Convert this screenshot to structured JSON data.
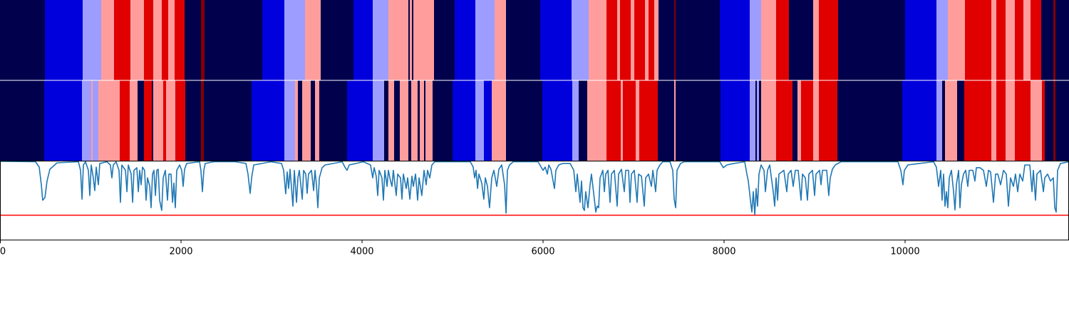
{
  "chart_data": {
    "type": "segmentation",
    "xlim": [
      0,
      11811
    ],
    "xticks": [
      0,
      2000,
      4000,
      6000,
      8000,
      10000
    ],
    "level_colors": {
      "-3": "#00004c",
      "-2": "#0000dd",
      "-1": "#9d9dff",
      "1": "#ff9d9d",
      "2": "#e10000",
      "3": "#830000"
    },
    "rows": [
      {
        "starts": [
          0,
          496,
          913,
          1118,
          1260,
          1441,
          1591,
          1693,
          1787,
          1858,
          1929,
          2039,
          2220,
          2260,
          2898,
          3142,
          3370,
          3543,
          3906,
          4118,
          4291,
          4512,
          4528,
          4551,
          4567,
          4795,
          5024,
          5252,
          5465,
          5591,
          5969,
          6315,
          6504,
          6701,
          6819,
          6850,
          6969,
          7008,
          7126,
          7165,
          7228,
          7276,
          7449,
          7465,
          7953,
          8283,
          8409,
          8575,
          8717,
          8984,
          9047,
          9260,
          10000,
          10346,
          10472,
          10661,
          10953,
          11008,
          11110,
          11213,
          11307,
          11386,
          11504,
          11638,
          11661
        ],
        "levels": [
          -3,
          -2,
          -1,
          1,
          2,
          1,
          2,
          1,
          2,
          1,
          2,
          -3,
          3,
          -3,
          -2,
          -1,
          1,
          -3,
          -2,
          -1,
          1,
          -3,
          1,
          -3,
          1,
          -3,
          -2,
          -1,
          1,
          -3,
          -2,
          -1,
          1,
          2,
          1,
          2,
          1,
          2,
          1,
          2,
          1,
          -3,
          3,
          -3,
          -2,
          -1,
          1,
          2,
          -3,
          1,
          2,
          -3,
          -2,
          -1,
          1,
          2,
          1,
          2,
          1,
          2,
          1,
          2,
          -3,
          3,
          -3
        ]
      },
      {
        "starts": [
          0,
          488,
          906,
          1008,
          1024,
          1087,
          1323,
          1433,
          1520,
          1591,
          1677,
          1693,
          1803,
          1835,
          1937,
          2047,
          2220,
          2252,
          2780,
          3142,
          3260,
          3291,
          3339,
          3433,
          3480,
          3528,
          3835,
          4118,
          4244,
          4291,
          4354,
          4417,
          4512,
          4543,
          4614,
          4638,
          4685,
          4701,
          4780,
          5000,
          5252,
          5346,
          5433,
          5591,
          5992,
          6323,
          6394,
          6488,
          6701,
          6858,
          6882,
          7024,
          7063,
          7268,
          7449,
          7465,
          7961,
          8283,
          8346,
          8362,
          8386,
          8409,
          8575,
          8756,
          8811,
          8850,
          8984,
          9047,
          9252,
          9969,
          10346,
          10409,
          10441,
          10575,
          10654,
          10953,
          11008,
          11110,
          11213,
          11386,
          11512,
          11543,
          11638,
          11661
        ],
        "levels": [
          -3,
          -2,
          -1,
          1,
          -1,
          1,
          2,
          1,
          -3,
          2,
          -3,
          1,
          2,
          1,
          2,
          -3,
          3,
          -3,
          -2,
          -1,
          1,
          -3,
          1,
          -3,
          1,
          -3,
          -2,
          -1,
          -3,
          1,
          -3,
          1,
          -3,
          1,
          -3,
          1,
          -3,
          1,
          -3,
          -2,
          -1,
          -2,
          1,
          -3,
          -2,
          -1,
          -3,
          1,
          2,
          1,
          2,
          1,
          2,
          -3,
          1,
          -3,
          -2,
          -1,
          -3,
          -1,
          -3,
          1,
          2,
          -3,
          1,
          2,
          1,
          2,
          -3,
          -2,
          -1,
          -3,
          1,
          -3,
          2,
          1,
          2,
          1,
          2,
          1,
          2,
          -3,
          3,
          -3
        ]
      }
    ],
    "line": {
      "color": "#1f77b4",
      "ylim": [
        -1.48,
        0.01
      ],
      "threshold": -1.01,
      "threshold_color": "#ff0000",
      "x": [
        0,
        394,
        433,
        457,
        472,
        496,
        520,
        551,
        630,
        866,
        890,
        906,
        921,
        945,
        976,
        992,
        1008,
        1031,
        1047,
        1063,
        1087,
        1102,
        1181,
        1220,
        1236,
        1252,
        1283,
        1315,
        1331,
        1346,
        1386,
        1402,
        1417,
        1449,
        1465,
        1480,
        1512,
        1528,
        1543,
        1559,
        1575,
        1598,
        1614,
        1630,
        1654,
        1669,
        1685,
        1701,
        1717,
        1732,
        1748,
        1764,
        1787,
        1803,
        1827,
        1850,
        1866,
        1890,
        1906,
        1921,
        1937,
        1953,
        1984,
        2008,
        2024,
        2039,
        2063,
        2205,
        2220,
        2236,
        2252,
        2268,
        2362,
        2598,
        2717,
        2740,
        2764,
        2780,
        2803,
        2992,
        3110,
        3134,
        3157,
        3173,
        3189,
        3205,
        3220,
        3236,
        3252,
        3276,
        3291,
        3307,
        3339,
        3354,
        3378,
        3394,
        3409,
        3441,
        3465,
        3480,
        3496,
        3512,
        3528,
        3559,
        3591,
        3780,
        3811,
        3835,
        3858,
        4016,
        4094,
        4118,
        4134,
        4157,
        4173,
        4189,
        4220,
        4236,
        4252,
        4276,
        4291,
        4315,
        4331,
        4346,
        4378,
        4394,
        4425,
        4441,
        4457,
        4488,
        4504,
        4528,
        4551,
        4567,
        4591,
        4614,
        4630,
        4661,
        4685,
        4709,
        4724,
        4748,
        4772,
        4803,
        5197,
        5228,
        5244,
        5260,
        5276,
        5291,
        5323,
        5346,
        5362,
        5386,
        5409,
        5433,
        5457,
        5488,
        5512,
        5543,
        5575,
        5591,
        5606,
        5630,
        5669,
        5945,
        6000,
        6024,
        6047,
        6063,
        6087,
        6126,
        6142,
        6173,
        6220,
        6299,
        6339,
        6362,
        6378,
        6394,
        6409,
        6425,
        6441,
        6457,
        6472,
        6496,
        6520,
        6535,
        6567,
        6583,
        6598,
        6614,
        6630,
        6661,
        6677,
        6693,
        6717,
        6740,
        6756,
        6787,
        6819,
        6835,
        6866,
        6898,
        6913,
        6945,
        6961,
        6976,
        7008,
        7039,
        7055,
        7087,
        7118,
        7134,
        7165,
        7197,
        7213,
        7244,
        7260,
        7291,
        7323,
        7402,
        7433,
        7449,
        7465,
        7480,
        7520,
        7559,
        7953,
        7992,
        8031,
        8110,
        8228,
        8252,
        8268,
        8291,
        8307,
        8323,
        8339,
        8354,
        8370,
        8386,
        8409,
        8441,
        8457,
        8480,
        8504,
        8543,
        8559,
        8575,
        8591,
        8606,
        8661,
        8693,
        8709,
        8740,
        8764,
        8787,
        8819,
        8850,
        8866,
        8898,
        8921,
        8937,
        8976,
        9000,
        9016,
        9055,
        9071,
        9087,
        9134,
        9157,
        9173,
        9197,
        9228,
        9291,
        9921,
        9953,
        9976,
        9992,
        10031,
        10157,
        10315,
        10346,
        10370,
        10394,
        10409,
        10425,
        10441,
        10457,
        10472,
        10488,
        10512,
        10535,
        10551,
        10567,
        10591,
        10606,
        10622,
        10646,
        10669,
        10693,
        10709,
        10748,
        10772,
        10787,
        10827,
        10866,
        10898,
        10921,
        10945,
        10976,
        11000,
        11024,
        11055,
        11087,
        11118,
        11142,
        11165,
        11197,
        11220,
        11244,
        11268,
        11299,
        11323,
        11378,
        11402,
        11417,
        11441,
        11457,
        11496,
        11528,
        11543,
        11575,
        11606,
        11638,
        11654,
        11669,
        11685,
        11717,
        11811
      ],
      "y": [
        0,
        -0.01,
        -0.11,
        -0.44,
        -0.73,
        -0.68,
        -0.37,
        -0.15,
        -0.03,
        -0.01,
        -0.17,
        -0.71,
        -0.07,
        -0.01,
        -0.17,
        -0.64,
        -0.07,
        -0.31,
        -0.55,
        -0.11,
        -0.44,
        -0.04,
        -0.01,
        -0.07,
        -0.31,
        -0.07,
        -0.01,
        -0.17,
        -0.77,
        -0.07,
        -0.17,
        -0.57,
        -0.07,
        -0.24,
        -0.77,
        -0.17,
        -0.12,
        -0.57,
        -0.17,
        -0.44,
        -0.11,
        -0.17,
        -0.73,
        -0.31,
        -0.47,
        -0.87,
        -0.24,
        -0.17,
        -0.64,
        -0.17,
        -0.15,
        -0.73,
        -0.92,
        -0.31,
        -0.17,
        -0.73,
        -0.24,
        -0.24,
        -0.77,
        -0.41,
        -0.87,
        -0.17,
        -0.07,
        -0.17,
        -0.47,
        -0.15,
        -0.04,
        -0.01,
        -0.17,
        -0.57,
        -0.17,
        -0.04,
        -0.01,
        -0.01,
        -0.04,
        -0.24,
        -0.6,
        -0.31,
        -0.07,
        -0.01,
        -0.04,
        -0.17,
        -0.61,
        -0.2,
        -0.51,
        -0.15,
        -0.47,
        -0.84,
        -0.17,
        -0.77,
        -0.31,
        -0.17,
        -0.71,
        -0.17,
        -0.24,
        -0.6,
        -0.24,
        -0.17,
        -0.55,
        -0.17,
        -0.44,
        -0.87,
        -0.31,
        -0.12,
        -0.07,
        -0.01,
        -0.11,
        -0.17,
        -0.07,
        -0.01,
        -0.07,
        -0.31,
        -0.12,
        -0.28,
        -0.64,
        -0.17,
        -0.31,
        -0.73,
        -0.17,
        -0.47,
        -0.17,
        -0.37,
        -0.47,
        -0.17,
        -0.64,
        -0.24,
        -0.31,
        -0.71,
        -0.24,
        -0.51,
        -0.31,
        -0.71,
        -0.28,
        -0.47,
        -0.24,
        -0.73,
        -0.31,
        -0.64,
        -0.17,
        -0.44,
        -0.17,
        -0.31,
        -0.07,
        -0.01,
        -0.01,
        -0.11,
        -0.31,
        -0.17,
        -0.51,
        -0.24,
        -0.41,
        -0.71,
        -0.31,
        -0.47,
        -0.87,
        -0.31,
        -0.17,
        -0.47,
        -0.15,
        -0.07,
        -0.44,
        -0.97,
        -0.17,
        -0.07,
        -0.01,
        -0.01,
        -0.17,
        -0.11,
        -0.24,
        -0.07,
        -0.15,
        -0.51,
        -0.17,
        -0.07,
        -0.04,
        -0.04,
        -0.17,
        -0.57,
        -0.24,
        -0.51,
        -0.77,
        -0.37,
        -0.87,
        -0.92,
        -0.57,
        -0.87,
        -0.44,
        -0.24,
        -0.71,
        -0.95,
        -0.84,
        -0.87,
        -0.31,
        -0.17,
        -0.57,
        -0.24,
        -0.17,
        -0.77,
        -0.24,
        -0.17,
        -0.84,
        -0.24,
        -0.15,
        -0.57,
        -0.17,
        -0.17,
        -0.77,
        -0.24,
        -0.17,
        -0.77,
        -0.24,
        -0.28,
        -0.84,
        -0.31,
        -0.24,
        -0.47,
        -0.17,
        -0.57,
        -0.17,
        -0.07,
        -0.01,
        -0.01,
        -0.17,
        -0.71,
        -0.87,
        -0.17,
        -0.04,
        -0.01,
        -0.01,
        -0.12,
        -0.07,
        -0.04,
        -0.01,
        -0.24,
        -0.37,
        -0.73,
        -0.95,
        -0.57,
        -1.0,
        -0.51,
        -0.84,
        -0.24,
        -0.07,
        -0.17,
        -0.57,
        -0.17,
        -0.07,
        -0.57,
        -0.84,
        -0.31,
        -0.73,
        -0.24,
        -0.17,
        -0.57,
        -0.24,
        -0.17,
        -0.47,
        -0.17,
        -0.17,
        -0.73,
        -0.24,
        -0.31,
        -0.73,
        -0.24,
        -0.17,
        -0.64,
        -0.24,
        -0.17,
        -0.44,
        -0.17,
        -0.17,
        -0.64,
        -0.31,
        -0.15,
        -0.07,
        -0.01,
        -0.01,
        -0.17,
        -0.44,
        -0.17,
        -0.07,
        -0.04,
        -0.01,
        -0.11,
        -0.47,
        -0.17,
        -0.73,
        -0.24,
        -0.84,
        -0.57,
        -0.87,
        -0.31,
        -0.17,
        -0.55,
        -0.91,
        -0.44,
        -0.17,
        -0.87,
        -0.44,
        -0.24,
        -0.17,
        -0.47,
        -0.17,
        -0.17,
        -0.37,
        -0.12,
        -0.12,
        -0.17,
        -0.47,
        -0.17,
        -0.2,
        -0.77,
        -0.24,
        -0.24,
        -0.44,
        -0.17,
        -0.24,
        -0.84,
        -0.31,
        -0.47,
        -0.24,
        -0.57,
        -0.24,
        -0.37,
        -0.07,
        -0.07,
        -0.57,
        -0.17,
        -0.73,
        -0.24,
        -0.17,
        -0.57,
        -0.31,
        -0.24,
        -0.37,
        -0.31,
        -0.87,
        -0.95,
        -0.17,
        -0.04,
        -0.01
      ]
    }
  }
}
